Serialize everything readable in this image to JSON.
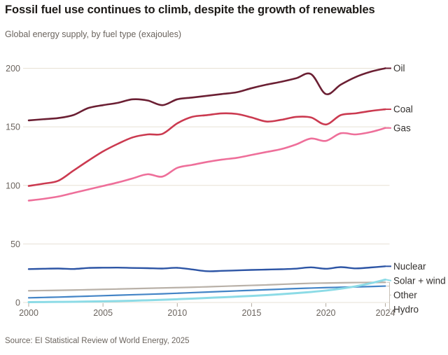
{
  "header": {
    "title": "Fossil fuel use continues to climb, despite the growth of renewables",
    "subtitle": "Global energy supply, by fuel type (exajoules)"
  },
  "footer": {
    "source": "Source: EI Statistical Review of World Energy, 2025"
  },
  "colors": {
    "background": "#ffffff",
    "gridline": "#e7e0d4",
    "tick": "#b3aba0",
    "leader": "#c8c1b7",
    "axis_text": "#6b645e",
    "series_label_text": "#33302e"
  },
  "chart_data": {
    "type": "line",
    "title": "Fossil fuel use continues to climb, despite the growth of renewables",
    "subtitle": "Global energy supply, by fuel type (exajoules)",
    "xlabel": "",
    "ylabel": "exajoules",
    "x": [
      2000,
      2001,
      2002,
      2003,
      2004,
      2005,
      2006,
      2007,
      2008,
      2009,
      2010,
      2011,
      2012,
      2013,
      2014,
      2015,
      2016,
      2017,
      2018,
      2019,
      2020,
      2021,
      2022,
      2023,
      2024
    ],
    "xticks": [
      2000,
      2005,
      2010,
      2015,
      2020,
      2024
    ],
    "yticks": [
      0,
      50,
      100,
      150,
      200
    ],
    "ylim": [
      0,
      210
    ],
    "grid": "horizontal-only",
    "legend_position": "right-end-labels",
    "series": [
      {
        "name": "Oil",
        "color": "#6b1f33",
        "width": 2.6,
        "values": [
          155.5,
          156.5,
          157.5,
          160,
          166,
          168.5,
          170.5,
          173.5,
          172.5,
          168.5,
          173.5,
          175,
          176.5,
          178,
          179.5,
          183,
          186,
          188.5,
          191.5,
          195,
          178,
          186,
          192.5,
          197,
          200
        ]
      },
      {
        "name": "Coal",
        "color": "#cb3a50",
        "width": 2.6,
        "values": [
          99.5,
          101.5,
          104,
          112.5,
          121,
          129,
          135.5,
          141,
          143.5,
          144,
          153,
          158.5,
          160,
          161.5,
          161,
          158,
          154.5,
          156,
          158.5,
          158,
          152,
          160,
          161.5,
          163.5,
          165
        ]
      },
      {
        "name": "Gas",
        "color": "#ee6f9a",
        "width": 2.6,
        "values": [
          87,
          88.5,
          90.5,
          93.5,
          96.5,
          99.5,
          102.5,
          106,
          109.5,
          107.5,
          115,
          117.5,
          120,
          122,
          123.5,
          126,
          128.5,
          131,
          135,
          140,
          138,
          144.5,
          143.5,
          145.5,
          149
        ]
      },
      {
        "name": "Nuclear",
        "color": "#2d55a5",
        "width": 2.4,
        "values": [
          28.5,
          28.8,
          29,
          28.6,
          29.5,
          29.7,
          29.8,
          29.5,
          29.3,
          29,
          29.6,
          28.2,
          26.7,
          27,
          27.4,
          27.8,
          28.1,
          28.4,
          28.9,
          30,
          28.8,
          30.2,
          29.1,
          29.9,
          30.9
        ]
      },
      {
        "name": "Solar + wind",
        "color": "#8cdbe6",
        "width": 3,
        "values": [
          0.3,
          0.4,
          0.5,
          0.6,
          0.8,
          1,
          1.2,
          1.5,
          1.9,
          2.3,
          2.8,
          3.3,
          3.9,
          4.4,
          5,
          5.6,
          6.3,
          7.1,
          8,
          9,
          10.2,
          11.8,
          13.8,
          16.4,
          19.5
        ]
      },
      {
        "name": "Other",
        "color": "#b9b1a8",
        "width": 2.2,
        "values": [
          10,
          10.2,
          10.4,
          10.6,
          10.9,
          11.2,
          11.5,
          11.8,
          12.1,
          12.4,
          12.7,
          13,
          13.4,
          13.8,
          14.2,
          14.6,
          15,
          15.5,
          16,
          16.4,
          16.6,
          16.8,
          17,
          17.1,
          17.2
        ]
      },
      {
        "name": "Hydro",
        "color": "#4384c6",
        "width": 2.2,
        "values": [
          4,
          4.3,
          4.6,
          5,
          5.4,
          5.8,
          6.2,
          6.6,
          7,
          7.4,
          7.9,
          8.4,
          8.9,
          9.4,
          9.9,
          10.4,
          10.9,
          11.4,
          11.9,
          12.3,
          12.7,
          13,
          13.3,
          13.6,
          14
        ]
      }
    ]
  }
}
